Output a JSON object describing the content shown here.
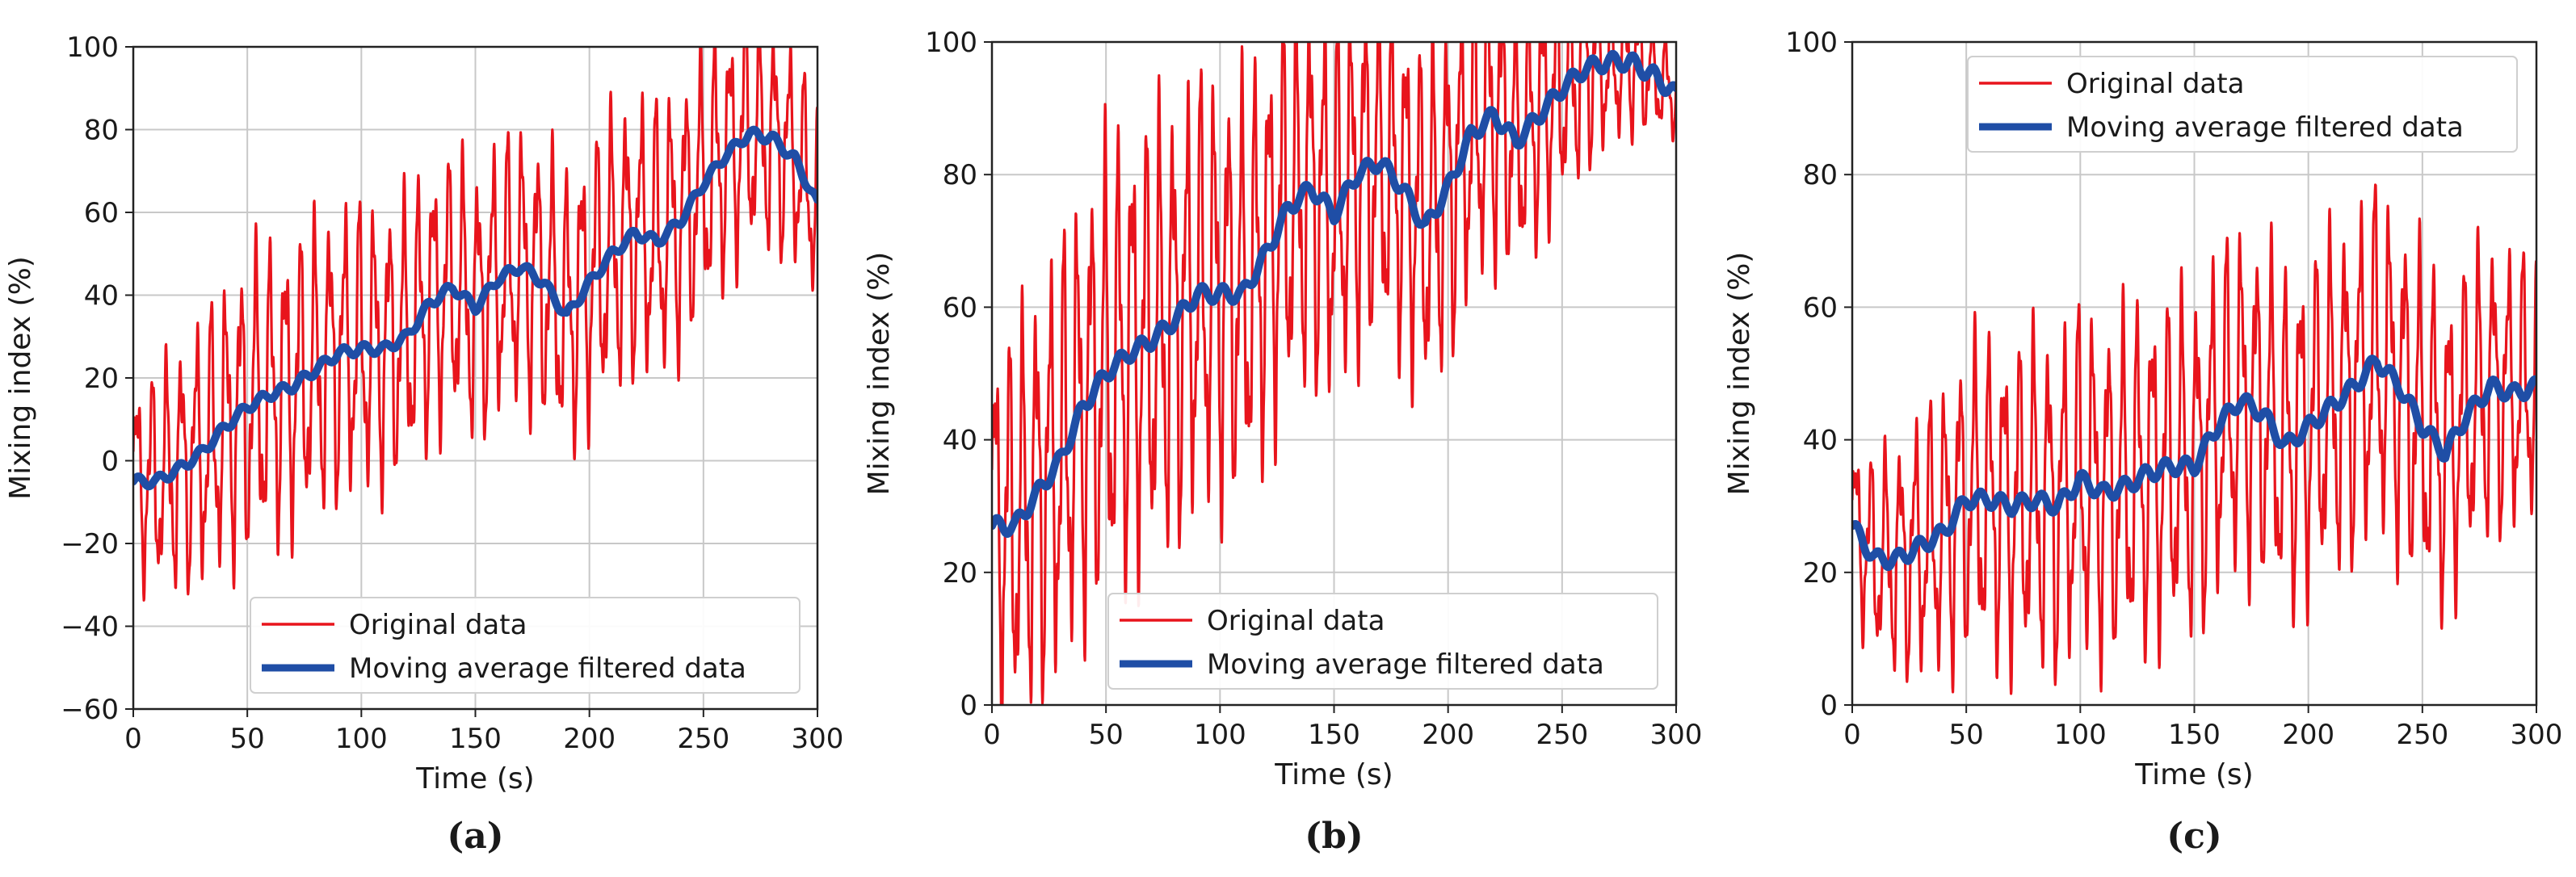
{
  "chart_data": [
    {
      "panel_label": "(a)",
      "type": "line",
      "xlabel": "Time (s)",
      "ylabel": "Mixing index (%)",
      "xlim": [
        0,
        300
      ],
      "ylim": [
        -60,
        100
      ],
      "xticks": [
        "0",
        "50",
        "100",
        "150",
        "200",
        "250",
        "300"
      ],
      "yticks": [
        "−60",
        "−40",
        "−20",
        "0",
        "20",
        "40",
        "60",
        "80",
        "100"
      ],
      "grid": true,
      "legend_position": "lower-right",
      "oscillation": {
        "period_s": 6.5,
        "amplitude": [
          22,
          34,
          32,
          30,
          32,
          30,
          22
        ]
      },
      "series": [
        {
          "name": "Original data",
          "color": "#e8141c",
          "x": [
            0,
            10,
            20,
            30,
            40,
            50,
            60,
            70,
            80,
            90,
            100,
            110,
            120,
            130,
            140,
            150,
            160,
            170,
            180,
            190,
            200,
            210,
            220,
            230,
            240,
            250,
            260,
            270,
            280,
            290,
            300
          ],
          "values": [
            -5,
            -5,
            -2,
            2,
            8,
            13,
            16,
            18,
            22,
            26,
            27,
            27,
            30,
            38,
            42,
            37,
            44,
            47,
            43,
            35,
            43,
            50,
            55,
            53,
            58,
            67,
            74,
            79,
            78,
            73,
            62
          ]
        },
        {
          "name": "Moving average filtered data",
          "color": "#1f4ea6",
          "x": [
            0,
            10,
            20,
            30,
            40,
            50,
            60,
            70,
            80,
            90,
            100,
            110,
            120,
            130,
            140,
            150,
            160,
            170,
            180,
            190,
            200,
            210,
            220,
            230,
            240,
            250,
            260,
            270,
            280,
            290,
            300
          ],
          "values": [
            -5,
            -5,
            -2,
            2,
            8,
            13,
            16,
            18,
            22,
            26,
            27,
            27,
            30,
            38,
            42,
            37,
            44,
            47,
            43,
            35,
            43,
            50,
            55,
            53,
            58,
            67,
            74,
            79,
            78,
            73,
            62
          ]
        }
      ]
    },
    {
      "panel_label": "(b)",
      "type": "line",
      "xlabel": "Time (s)",
      "ylabel": "Mixing index (%)",
      "xlim": [
        0,
        300
      ],
      "ylim": [
        0,
        100
      ],
      "xticks": [
        "0",
        "50",
        "100",
        "150",
        "200",
        "250",
        "300"
      ],
      "yticks": [
        "0",
        "20",
        "40",
        "60",
        "80",
        "100"
      ],
      "grid": true,
      "legend_position": "lower-right",
      "oscillation": {
        "period_s": 6.0,
        "amplitude": [
          26,
          32,
          30,
          26,
          24,
          16,
          6
        ]
      },
      "series": [
        {
          "name": "Original data",
          "color": "#e8141c",
          "x": [
            0,
            10,
            20,
            30,
            40,
            50,
            60,
            70,
            80,
            90,
            100,
            110,
            120,
            130,
            140,
            150,
            160,
            170,
            180,
            190,
            200,
            210,
            220,
            230,
            240,
            250,
            260,
            270,
            280,
            290,
            300
          ],
          "values": [
            27,
            27,
            32,
            37,
            45,
            50,
            53,
            55,
            58,
            62,
            62,
            62,
            68,
            75,
            78,
            74,
            80,
            82,
            78,
            72,
            78,
            86,
            89,
            85,
            89,
            93,
            96,
            97,
            97,
            95,
            92
          ]
        },
        {
          "name": "Moving average filtered data",
          "color": "#1f4ea6",
          "x": [
            0,
            10,
            20,
            30,
            40,
            50,
            60,
            70,
            80,
            90,
            100,
            110,
            120,
            130,
            140,
            150,
            160,
            170,
            180,
            190,
            200,
            210,
            220,
            230,
            240,
            250,
            260,
            270,
            280,
            290,
            300
          ],
          "values": [
            27,
            27,
            32,
            37,
            45,
            50,
            53,
            55,
            58,
            62,
            62,
            62,
            68,
            75,
            78,
            74,
            80,
            82,
            78,
            72,
            78,
            86,
            89,
            85,
            89,
            93,
            96,
            97,
            97,
            95,
            92
          ]
        }
      ]
    },
    {
      "panel_label": "(c)",
      "type": "line",
      "xlabel": "Time (s)",
      "ylabel": "Mixing index (%)",
      "xlim": [
        0,
        300
      ],
      "ylim": [
        0,
        100
      ],
      "xticks": [
        "0",
        "50",
        "100",
        "150",
        "200",
        "250",
        "300"
      ],
      "yticks": [
        "0",
        "20",
        "40",
        "60",
        "80",
        "100"
      ],
      "grid": true,
      "legend_position": "top-right",
      "oscillation": {
        "period_s": 6.5,
        "amplitude": [
          12,
          22,
          24,
          24,
          24,
          24,
          18
        ]
      },
      "series": [
        {
          "name": "Original data",
          "color": "#e8141c",
          "x": [
            0,
            10,
            20,
            30,
            40,
            50,
            60,
            70,
            80,
            90,
            100,
            110,
            120,
            130,
            140,
            150,
            160,
            170,
            180,
            190,
            200,
            210,
            220,
            230,
            240,
            250,
            260,
            270,
            280,
            290,
            300
          ],
          "values": [
            27,
            22,
            22,
            24,
            26,
            31,
            31,
            30,
            31,
            30,
            34,
            32,
            33,
            35,
            36,
            36,
            42,
            46,
            44,
            39,
            42,
            45,
            48,
            52,
            48,
            42,
            38,
            44,
            48,
            47,
            48
          ]
        },
        {
          "name": "Moving average filtered data",
          "color": "#1f4ea6",
          "x": [
            0,
            10,
            20,
            30,
            40,
            50,
            60,
            70,
            80,
            90,
            100,
            110,
            120,
            130,
            140,
            150,
            160,
            170,
            180,
            190,
            200,
            210,
            220,
            230,
            240,
            250,
            260,
            270,
            280,
            290,
            300
          ],
          "values": [
            27,
            22,
            22,
            24,
            26,
            31,
            31,
            30,
            31,
            30,
            34,
            32,
            33,
            35,
            36,
            36,
            42,
            46,
            44,
            39,
            42,
            45,
            48,
            52,
            48,
            42,
            38,
            44,
            48,
            47,
            48
          ]
        }
      ]
    }
  ]
}
